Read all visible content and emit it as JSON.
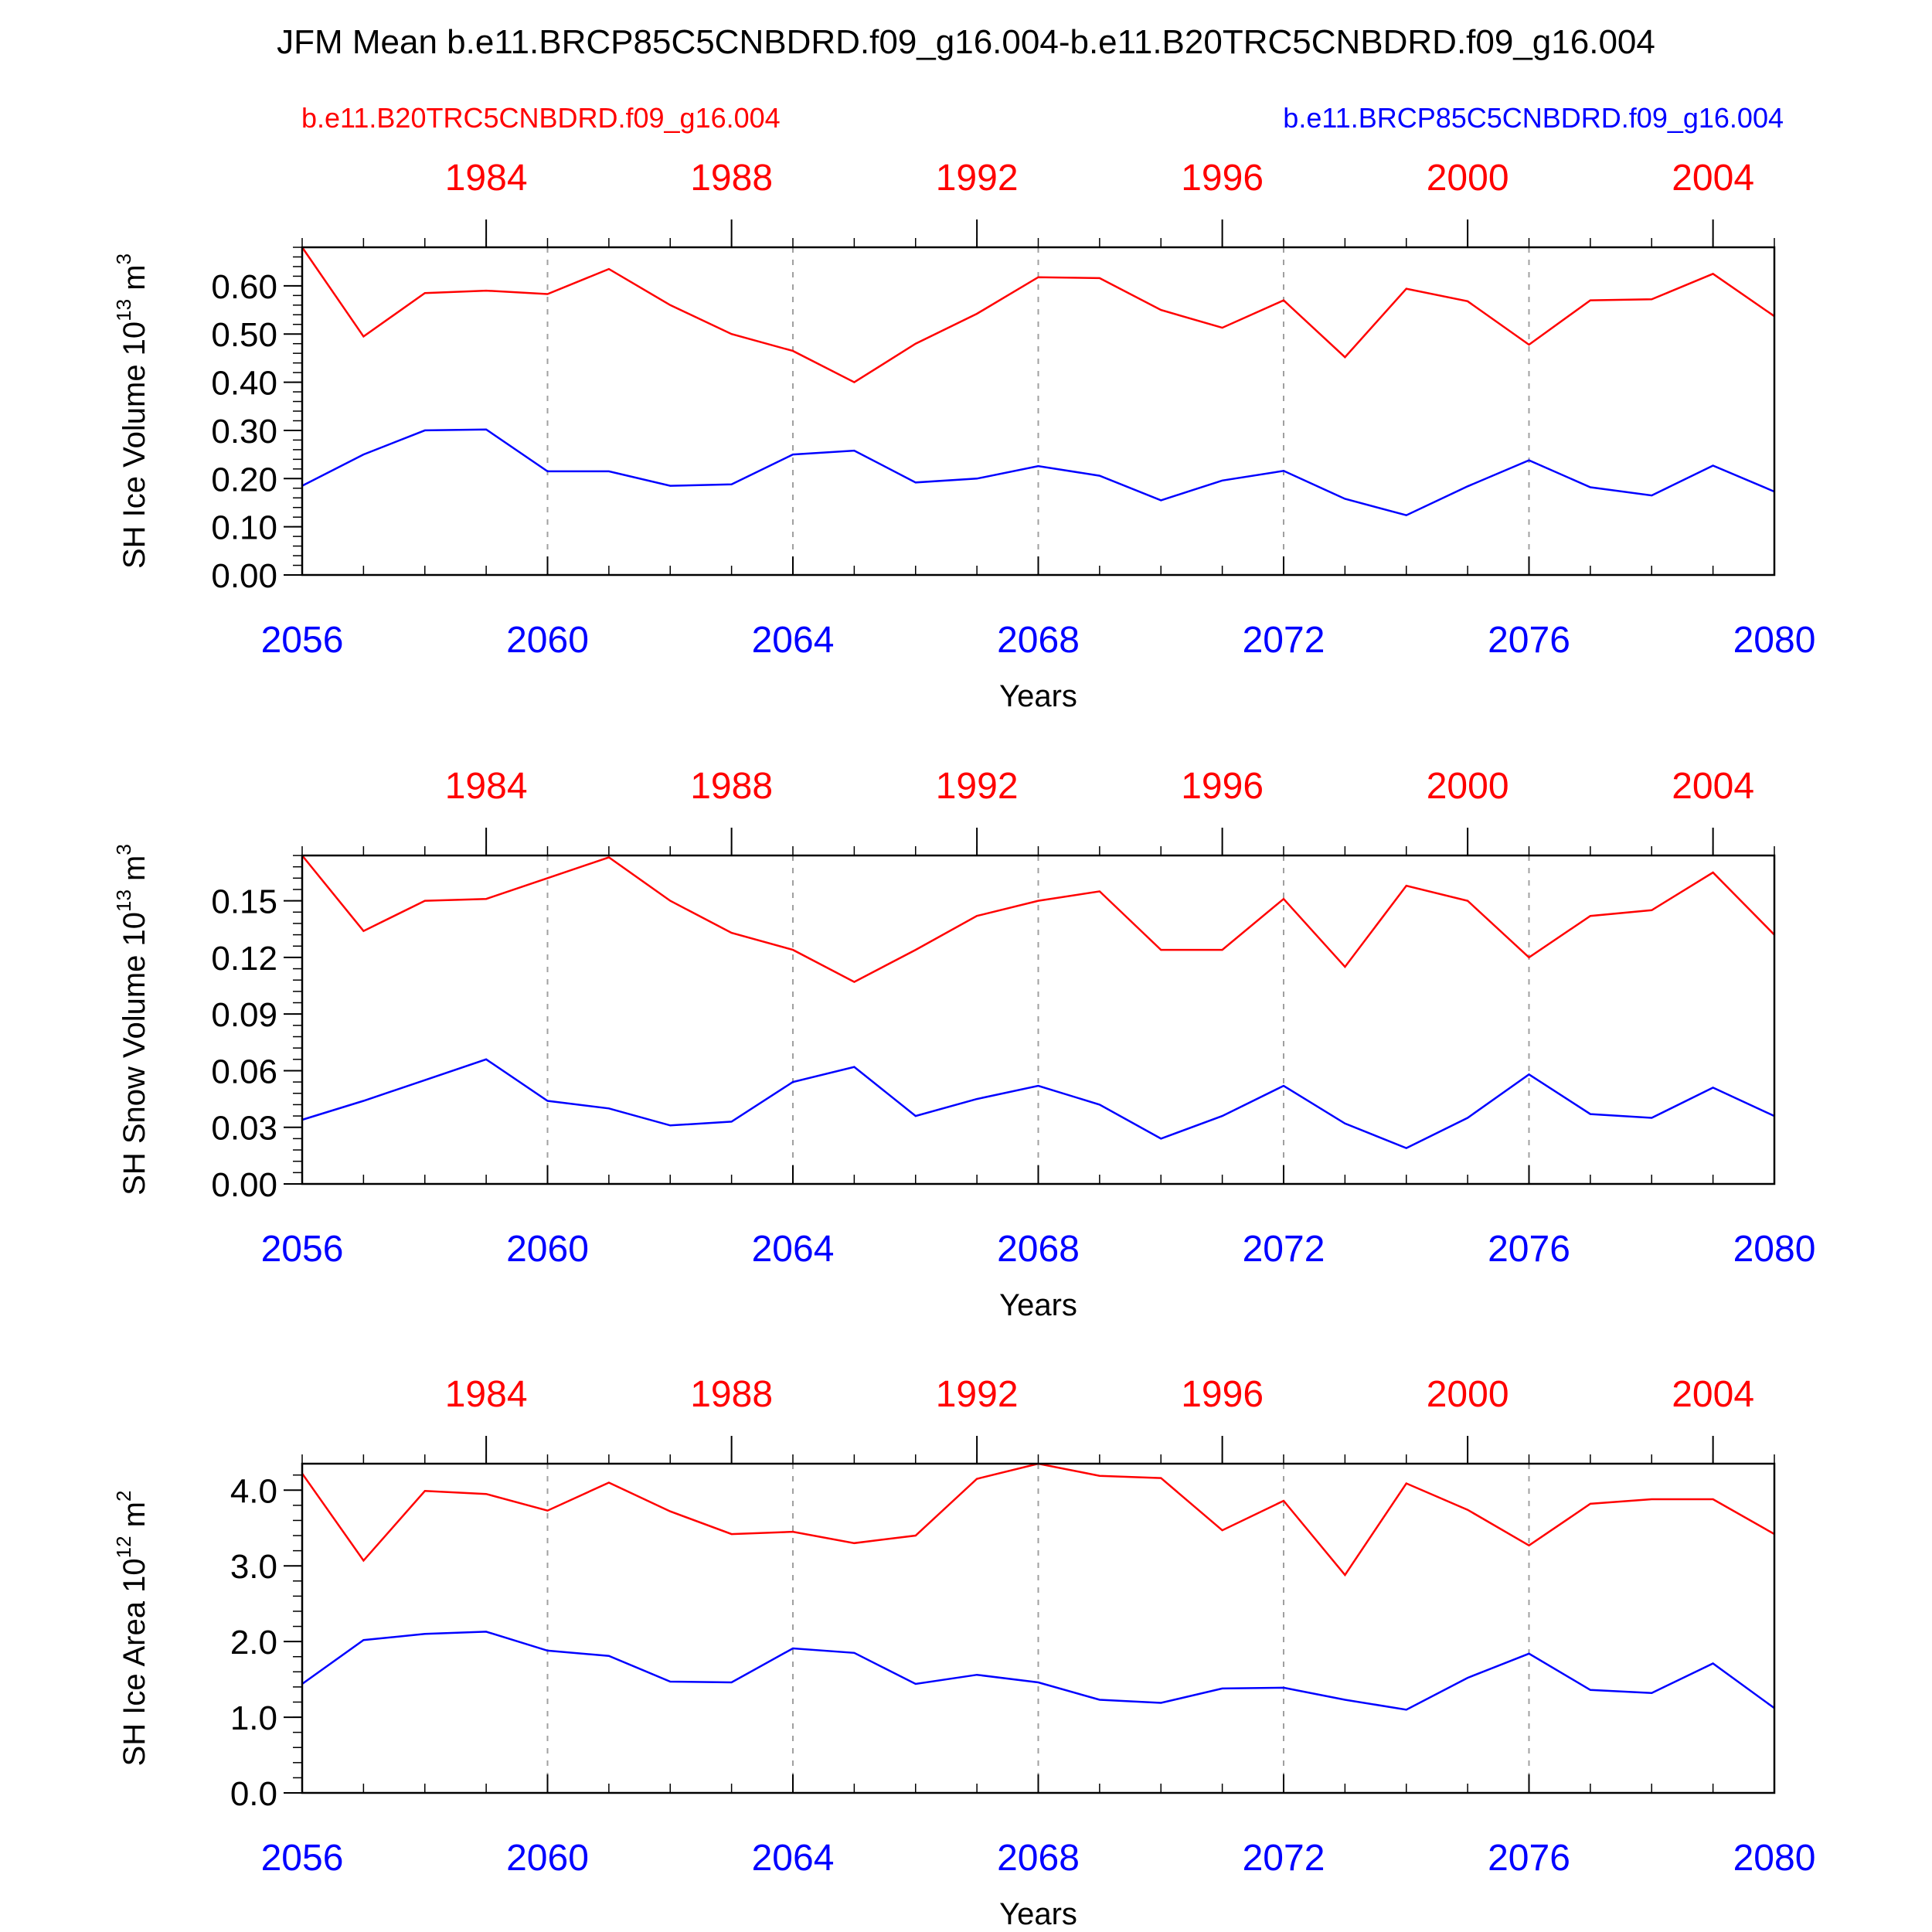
{
  "title": "JFM Mean b.e11.BRCP85C5CNBDRD.f09_g16.004-b.e11.B20TRC5CNBDRD.f09_g16.004",
  "legend": {
    "historical": "b.e11.B20TRC5CNBDRD.f09_g16.004",
    "future": "b.e11.BRCP85C5CNBDRD.f09_g16.004"
  },
  "colors": {
    "historical": "#ff0000",
    "future": "#0000ff",
    "axis": "#000000",
    "grid": "#a0a0a0"
  },
  "chart_data": [
    {
      "type": "line",
      "ylabel_main": "SH Ice Volume 10",
      "ylabel_exp": "13",
      "ylabel_unit": " m",
      "ylabel_unit_exp": "3",
      "xlabel": "Years",
      "xlim": [
        2056,
        2080
      ],
      "ylim": [
        0,
        0.68
      ],
      "yticks": [
        0.0,
        0.1,
        0.2,
        0.3,
        0.4,
        0.5,
        0.6
      ],
      "ytick_labels": [
        "0.00",
        "0.10",
        "0.20",
        "0.30",
        "0.40",
        "0.50",
        "0.60"
      ],
      "bottom_ticks": [
        2056,
        2060,
        2064,
        2068,
        2072,
        2076,
        2080
      ],
      "top_ticks": [
        {
          "at": 2059,
          "label": "1984"
        },
        {
          "at": 2063,
          "label": "1988"
        },
        {
          "at": 2067,
          "label": "1992"
        },
        {
          "at": 2071,
          "label": "1996"
        },
        {
          "at": 2075,
          "label": "2000"
        },
        {
          "at": 2079,
          "label": "2004"
        }
      ],
      "x": [
        2056,
        2057,
        2058,
        2059,
        2060,
        2061,
        2062,
        2063,
        2064,
        2065,
        2066,
        2067,
        2068,
        2069,
        2070,
        2071,
        2072,
        2073,
        2074,
        2075,
        2076,
        2077,
        2078,
        2079,
        2080
      ],
      "series": [
        {
          "name": "b.e11.B20TRC5CNBDRD.f09_g16.004",
          "values": [
            0.68,
            0.495,
            0.585,
            0.59,
            0.583,
            0.635,
            0.56,
            0.5,
            0.465,
            0.4,
            0.48,
            0.542,
            0.618,
            0.616,
            0.55,
            0.513,
            0.57,
            0.452,
            0.594,
            0.568,
            0.478,
            0.57,
            0.572,
            0.625,
            0.537
          ]
        },
        {
          "name": "b.e11.BRCP85C5CNBDRD.f09_g16.004",
          "values": [
            0.185,
            0.25,
            0.3,
            0.302,
            0.215,
            0.215,
            0.185,
            0.188,
            0.25,
            0.258,
            0.192,
            0.2,
            0.226,
            0.206,
            0.155,
            0.196,
            0.216,
            0.158,
            0.124,
            0.184,
            0.238,
            0.182,
            0.165,
            0.227,
            0.173
          ]
        }
      ]
    },
    {
      "type": "line",
      "ylabel_main": "SH Snow Volume 10",
      "ylabel_exp": "13",
      "ylabel_unit": " m",
      "ylabel_unit_exp": "3",
      "xlabel": "Years",
      "xlim": [
        2056,
        2080
      ],
      "ylim": [
        0,
        0.174
      ],
      "yticks": [
        0.0,
        0.03,
        0.06,
        0.09,
        0.12,
        0.15
      ],
      "ytick_labels": [
        "0.00",
        "0.03",
        "0.06",
        "0.09",
        "0.12",
        "0.15"
      ],
      "bottom_ticks": [
        2056,
        2060,
        2064,
        2068,
        2072,
        2076,
        2080
      ],
      "top_ticks": [
        {
          "at": 2059,
          "label": "1984"
        },
        {
          "at": 2063,
          "label": "1988"
        },
        {
          "at": 2067,
          "label": "1992"
        },
        {
          "at": 2071,
          "label": "1996"
        },
        {
          "at": 2075,
          "label": "2000"
        },
        {
          "at": 2079,
          "label": "2004"
        }
      ],
      "x": [
        2056,
        2057,
        2058,
        2059,
        2060,
        2061,
        2062,
        2063,
        2064,
        2065,
        2066,
        2067,
        2068,
        2069,
        2070,
        2071,
        2072,
        2073,
        2074,
        2075,
        2076,
        2077,
        2078,
        2079,
        2080
      ],
      "series": [
        {
          "name": "b.e11.B20TRC5CNBDRD.f09_g16.004",
          "values": [
            0.174,
            0.134,
            0.15,
            0.151,
            0.162,
            0.173,
            0.15,
            0.133,
            0.124,
            0.107,
            0.124,
            0.142,
            0.15,
            0.155,
            0.124,
            0.124,
            0.151,
            0.115,
            0.158,
            0.15,
            0.12,
            0.142,
            0.145,
            0.165,
            0.132
          ]
        },
        {
          "name": "b.e11.BRCP85C5CNBDRD.f09_g16.004",
          "values": [
            0.034,
            0.044,
            0.055,
            0.066,
            0.044,
            0.04,
            0.031,
            0.033,
            0.054,
            0.062,
            0.036,
            0.045,
            0.052,
            0.042,
            0.024,
            0.036,
            0.052,
            0.032,
            0.019,
            0.035,
            0.058,
            0.037,
            0.035,
            0.051,
            0.036
          ]
        }
      ]
    },
    {
      "type": "line",
      "ylabel_main": "SH Ice Area 10",
      "ylabel_exp": "12",
      "ylabel_unit": " m",
      "ylabel_unit_exp": "2",
      "xlabel": "Years",
      "xlim": [
        2056,
        2080
      ],
      "ylim": [
        0,
        4.35
      ],
      "yticks": [
        0.0,
        1.0,
        2.0,
        3.0,
        4.0
      ],
      "ytick_labels": [
        "0.0",
        "1.0",
        "2.0",
        "3.0",
        "4.0"
      ],
      "bottom_ticks": [
        2056,
        2060,
        2064,
        2068,
        2072,
        2076,
        2080
      ],
      "top_ticks": [
        {
          "at": 2059,
          "label": "1984"
        },
        {
          "at": 2063,
          "label": "1988"
        },
        {
          "at": 2067,
          "label": "1992"
        },
        {
          "at": 2071,
          "label": "1996"
        },
        {
          "at": 2075,
          "label": "2000"
        },
        {
          "at": 2079,
          "label": "2004"
        }
      ],
      "x": [
        2056,
        2057,
        2058,
        2059,
        2060,
        2061,
        2062,
        2063,
        2064,
        2065,
        2066,
        2067,
        2068,
        2069,
        2070,
        2071,
        2072,
        2073,
        2074,
        2075,
        2076,
        2077,
        2078,
        2079,
        2080
      ],
      "series": [
        {
          "name": "b.e11.B20TRC5CNBDRD.f09_g16.004",
          "values": [
            4.22,
            3.07,
            3.99,
            3.95,
            3.73,
            4.1,
            3.72,
            3.42,
            3.45,
            3.3,
            3.4,
            4.15,
            4.35,
            4.19,
            4.16,
            3.47,
            3.86,
            2.88,
            4.09,
            3.74,
            3.27,
            3.82,
            3.88,
            3.88,
            3.42
          ]
        },
        {
          "name": "b.e11.BRCP85C5CNBDRD.f09_g16.004",
          "values": [
            1.44,
            2.02,
            2.1,
            2.13,
            1.88,
            1.81,
            1.47,
            1.46,
            1.91,
            1.85,
            1.44,
            1.56,
            1.46,
            1.23,
            1.19,
            1.38,
            1.39,
            1.23,
            1.1,
            1.52,
            1.84,
            1.36,
            1.32,
            1.71,
            1.12
          ]
        }
      ]
    }
  ]
}
